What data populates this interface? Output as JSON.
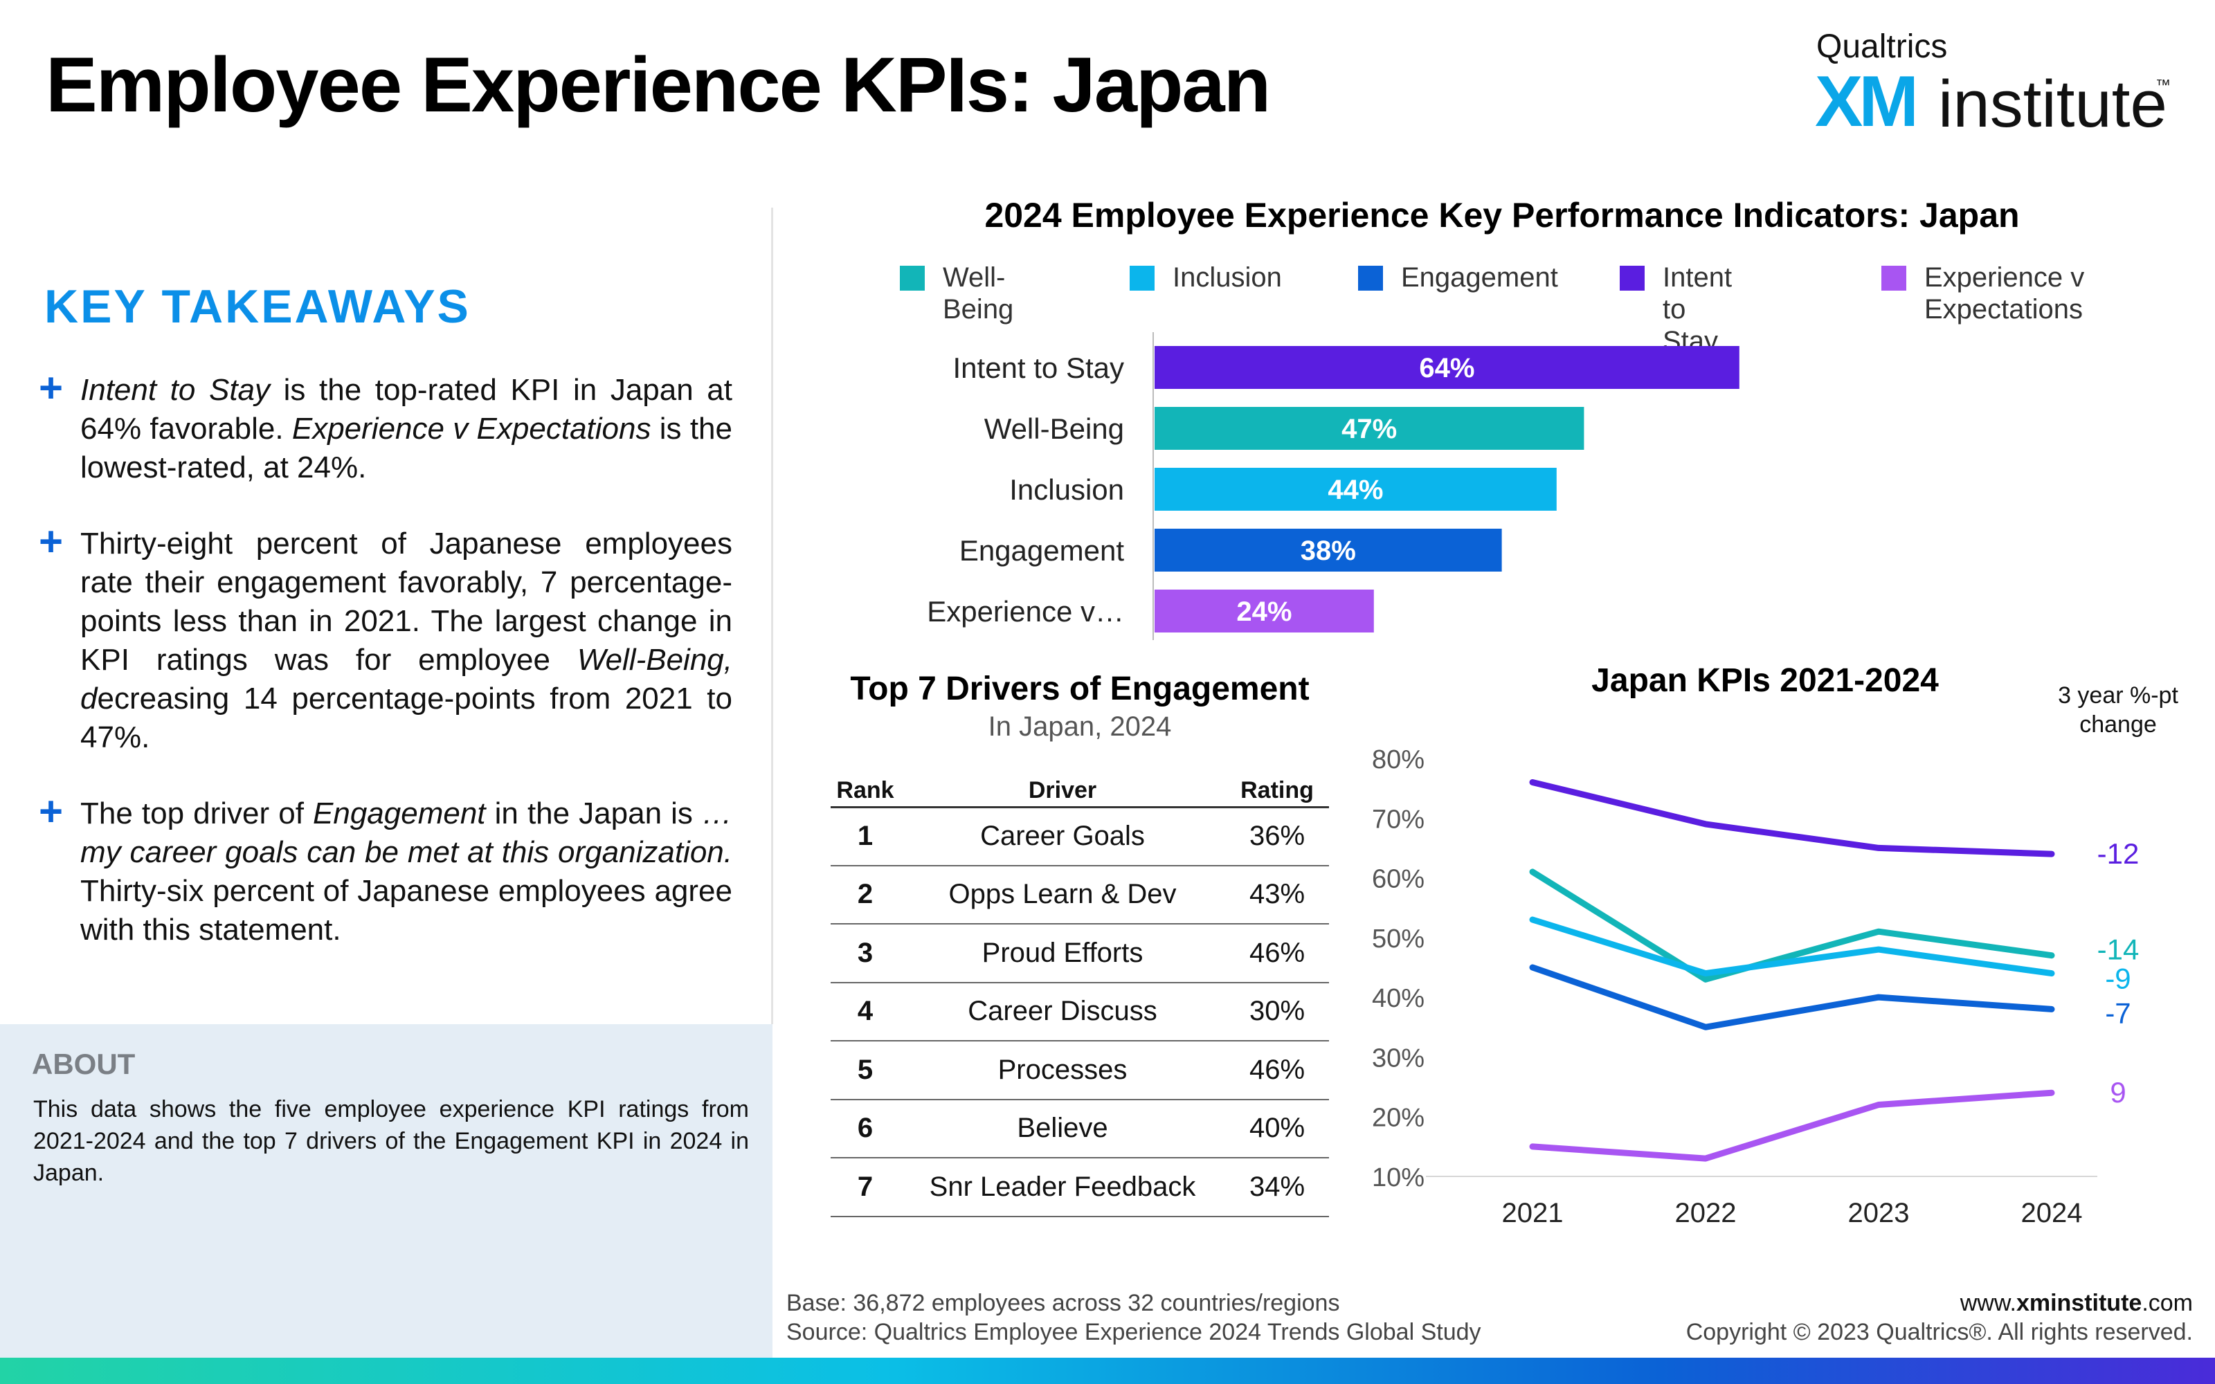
{
  "header": {
    "title": "Employee Experience KPIs: Japan",
    "logo": {
      "brand": "Qualtrics",
      "xm": "XM",
      "institute": "institute",
      "tm": "™"
    }
  },
  "takeaways": {
    "title": "KEY TAKEAWAYS",
    "plus_symbol": "+",
    "items": [
      {
        "parts": [
          {
            "text": "Intent to Stay",
            "italic": true
          },
          {
            "text": " is the top-rated KPI in Japan at 64% favorable. ",
            "italic": false
          },
          {
            "text": "Experience v Expectations",
            "italic": true
          },
          {
            "text": " is the lowest-rated, at 24%.",
            "italic": false
          }
        ]
      },
      {
        "parts": [
          {
            "text": "Thirty-eight percent of Japanese employees rate their engagement favorably, 7 percentage-points less than in 2021. The largest change in KPI ratings was for employee ",
            "italic": false
          },
          {
            "text": "Well-Being, d",
            "italic": true
          },
          {
            "text": "ecreasing 14 percentage-points from 2021 to 47%.",
            "italic": false
          }
        ]
      },
      {
        "parts": [
          {
            "text": "The top driver of ",
            "italic": false
          },
          {
            "text": "Engagement",
            "italic": true
          },
          {
            "text": " in the Japan is ",
            "italic": false
          },
          {
            "text": "…my career goals can be met at this organization.",
            "italic": true
          },
          {
            "text": " Thirty-six percent of Japanese employees agree with this statement.",
            "italic": false
          }
        ]
      }
    ]
  },
  "about": {
    "title": "ABOUT",
    "text": "This data shows the five employee experience KPI ratings from 2021-2024 and the top 7 drivers of the Engagement KPI in 2024 in Japan."
  },
  "colors": {
    "intent": "#5a1ee0",
    "wellbeing": "#12b5b8",
    "inclusion": "#0bb5ec",
    "engagement": "#0b62d6",
    "expectations": "#a855f2"
  },
  "chart_data": [
    {
      "type": "bar",
      "orientation": "horizontal",
      "title": "2024 Employee Experience Key Performance Indicators: Japan",
      "legend": [
        {
          "name": "Well-Being",
          "color": "#12b5b8"
        },
        {
          "name": "Inclusion",
          "color": "#0bb5ec"
        },
        {
          "name": "Engagement",
          "color": "#0b62d6"
        },
        {
          "name": "Intent to Stay",
          "color": "#5a1ee0"
        },
        {
          "name": "Experience v Expectations",
          "color": "#a855f2"
        }
      ],
      "legend_placement": "top",
      "categories": [
        "Intent to Stay",
        "Well-Being",
        "Inclusion",
        "Engagement",
        "Experience v…"
      ],
      "values": [
        64,
        47,
        44,
        38,
        24
      ],
      "value_labels": [
        "64%",
        "47%",
        "44%",
        "38%",
        "24%"
      ],
      "colors": [
        "#5a1ee0",
        "#12b5b8",
        "#0bb5ec",
        "#0b62d6",
        "#a855f2"
      ],
      "xlim": [
        0,
        100
      ]
    },
    {
      "type": "table",
      "title": "Top 7 Drivers of Engagement",
      "subtitle": "In Japan, 2024",
      "columns": [
        "Rank",
        "Driver",
        "Rating"
      ],
      "rows": [
        [
          "1",
          "Career Goals",
          "36%"
        ],
        [
          "2",
          "Opps Learn & Dev",
          "43%"
        ],
        [
          "3",
          "Proud Efforts",
          "46%"
        ],
        [
          "4",
          "Career Discuss",
          "30%"
        ],
        [
          "5",
          "Processes",
          "46%"
        ],
        [
          "6",
          "Believe",
          "40%"
        ],
        [
          "7",
          "Snr Leader Feedback",
          "34%"
        ]
      ]
    },
    {
      "type": "line",
      "title": "Japan KPIs 2021-2024",
      "change_header": "3 year %-pt change",
      "x": [
        "2021",
        "2022",
        "2023",
        "2024"
      ],
      "ylim": [
        10,
        80
      ],
      "yticks": [
        "10%",
        "20%",
        "30%",
        "40%",
        "50%",
        "60%",
        "70%",
        "80%"
      ],
      "series": [
        {
          "key": "intent",
          "values": [
            76,
            69,
            65,
            64
          ],
          "change": "-12",
          "color": "#5a1ee0"
        },
        {
          "key": "wellbeing",
          "values": [
            61,
            43,
            51,
            47
          ],
          "change": "-14",
          "color": "#12b5b8"
        },
        {
          "key": "inclusion",
          "values": [
            53,
            44,
            48,
            44
          ],
          "change": "-9",
          "color": "#0bb5ec"
        },
        {
          "key": "engagement",
          "values": [
            45,
            35,
            40,
            38
          ],
          "change": "-7",
          "color": "#0b62d6"
        },
        {
          "key": "expectations",
          "values": [
            15,
            13,
            22,
            24
          ],
          "change": "9",
          "color": "#a855f2"
        }
      ]
    }
  ],
  "footer": {
    "base": "Base: 36,872 employees across 32 countries/regions",
    "source": "Source: Qualtrics Employee Experience 2024 Trends Global Study",
    "website_prefix": "www.",
    "website_domain": "xminstitute",
    "website_suffix": ".com",
    "copyright": "Copyright © 2023 Qualtrics®. All rights reserved."
  }
}
